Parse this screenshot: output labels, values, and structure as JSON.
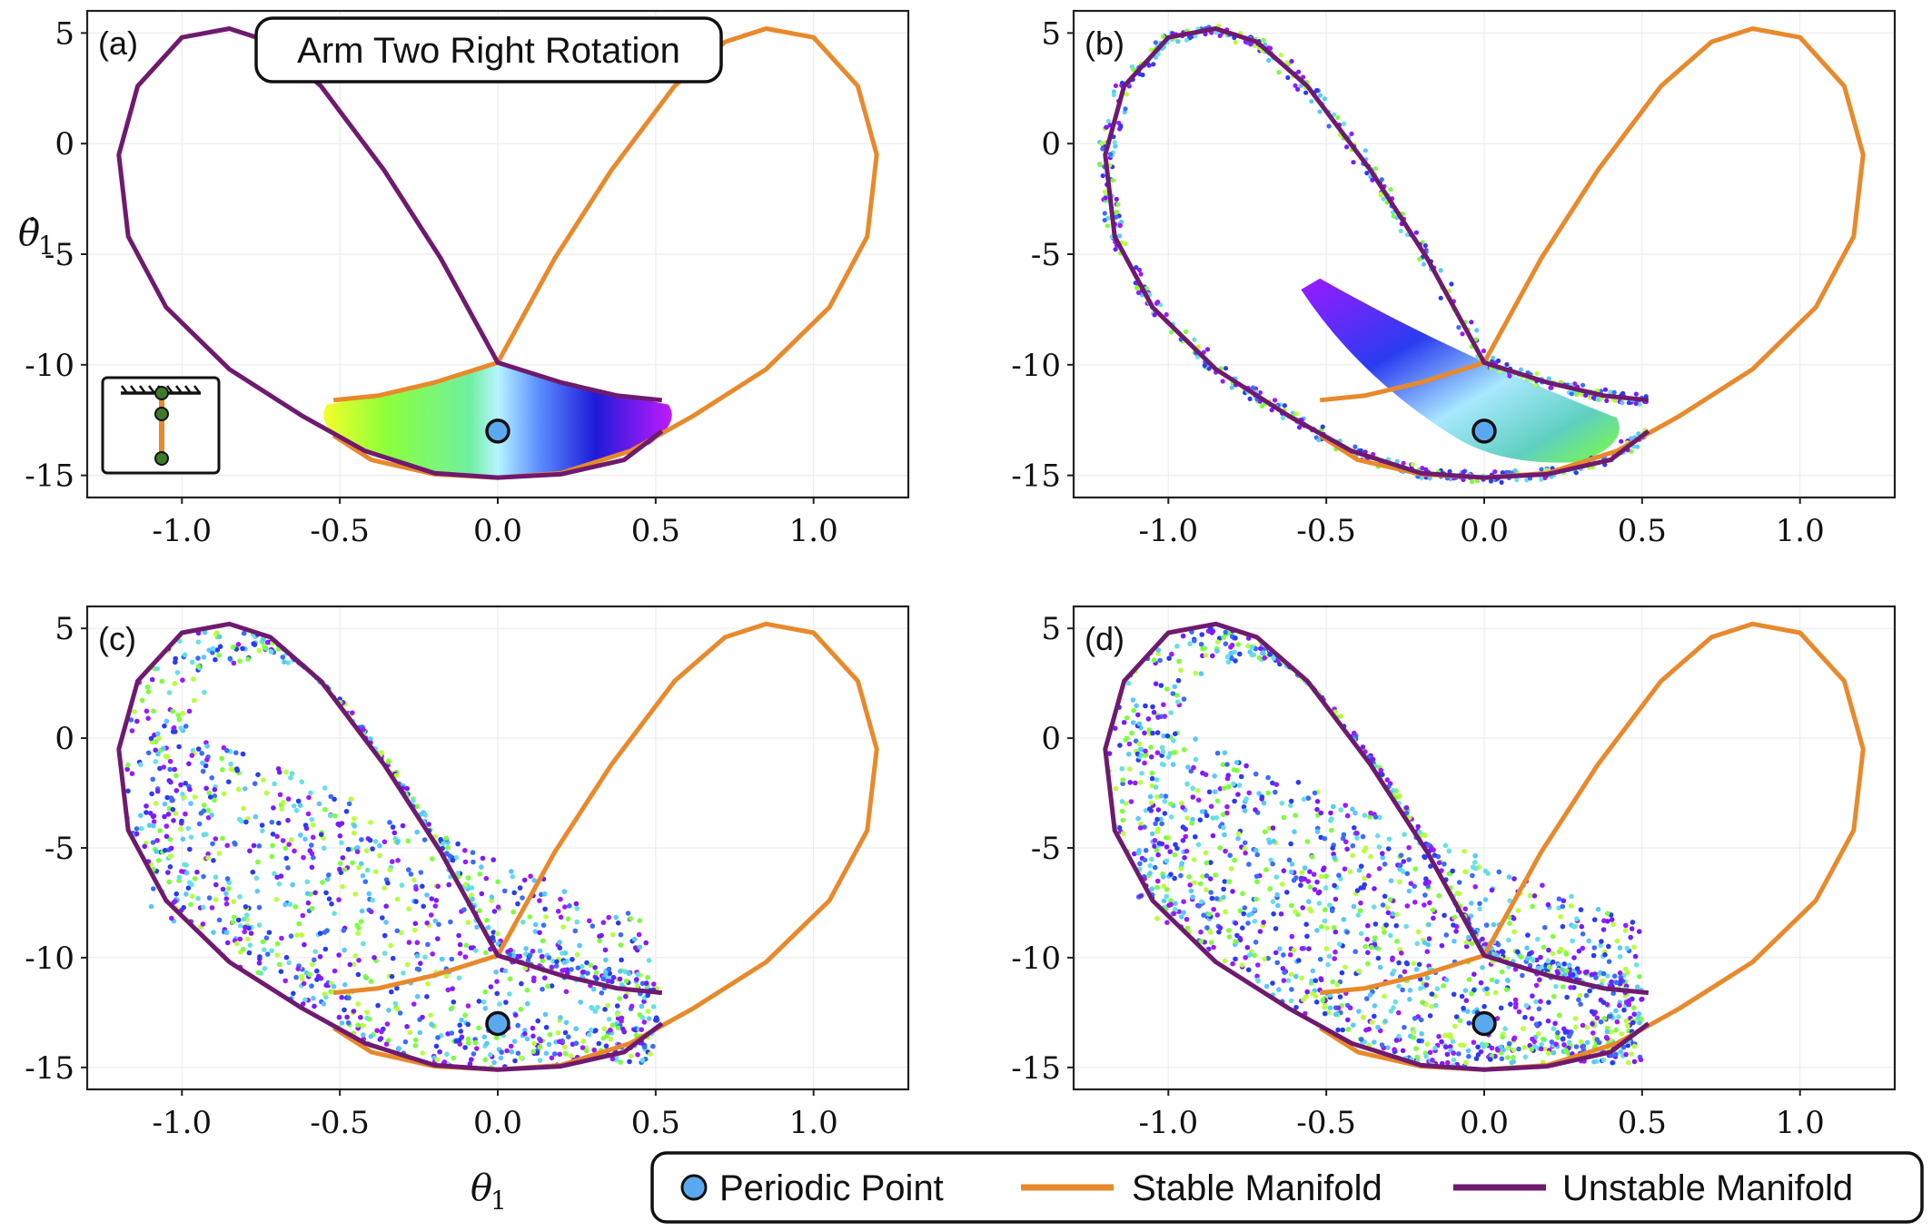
{
  "figure": {
    "title_box": "Arm Two Right Rotation",
    "xlabel": "θ",
    "xlabel_sub": "1",
    "ylabel": "θ̇",
    "ylabel_sub": "1"
  },
  "legend": {
    "items": [
      {
        "label": "Periodic Point",
        "kind": "marker",
        "color": "#5aa9f0"
      },
      {
        "label": "Stable Manifold",
        "kind": "line",
        "color": "#e8892b"
      },
      {
        "label": "Unstable Manifold",
        "kind": "line",
        "color": "#6f1a6f"
      }
    ]
  },
  "chart_data": [
    {
      "type": "scatter",
      "panel": "(a)",
      "title": "Arm Two Right Rotation",
      "xlim": [
        -1.3,
        1.3
      ],
      "ylim": [
        -16,
        6
      ],
      "xticks": [
        -1.0,
        -0.5,
        0.0,
        0.5,
        1.0
      ],
      "yticks": [
        5,
        0,
        -5,
        -10,
        -15
      ],
      "grid": true,
      "periodic_point": {
        "x": 0.0,
        "y": -13.0
      },
      "series": [
        {
          "name": "Stable Manifold",
          "color": "#e8892b"
        },
        {
          "name": "Unstable Manifold",
          "color": "#6f1a6f"
        }
      ],
      "cloud": "filled"
    },
    {
      "type": "scatter",
      "panel": "(b)",
      "xlim": [
        -1.3,
        1.3
      ],
      "ylim": [
        -16,
        6
      ],
      "xticks": [
        -1.0,
        -0.5,
        0.0,
        0.5,
        1.0
      ],
      "yticks": [
        5,
        0,
        -5,
        -10,
        -15
      ],
      "grid": true,
      "periodic_point": {
        "x": 0.0,
        "y": -13.0
      },
      "cloud": "stretched"
    },
    {
      "type": "scatter",
      "panel": "(c)",
      "xlim": [
        -1.3,
        1.3
      ],
      "ylim": [
        -16,
        6
      ],
      "xticks": [
        -1.0,
        -0.5,
        0.0,
        0.5,
        1.0
      ],
      "yticks": [
        5,
        0,
        -5,
        -10,
        -15
      ],
      "grid": true,
      "periodic_point": {
        "x": 0.0,
        "y": -13.0
      },
      "cloud": "folded"
    },
    {
      "type": "scatter",
      "panel": "(d)",
      "xlim": [
        -1.3,
        1.3
      ],
      "ylim": [
        -16,
        6
      ],
      "xticks": [
        -1.0,
        -0.5,
        0.0,
        0.5,
        1.0
      ],
      "yticks": [
        5,
        0,
        -5,
        -10,
        -15
      ],
      "grid": true,
      "periodic_point": {
        "x": 0.0,
        "y": -13.0
      },
      "cloud": "mixed"
    }
  ]
}
